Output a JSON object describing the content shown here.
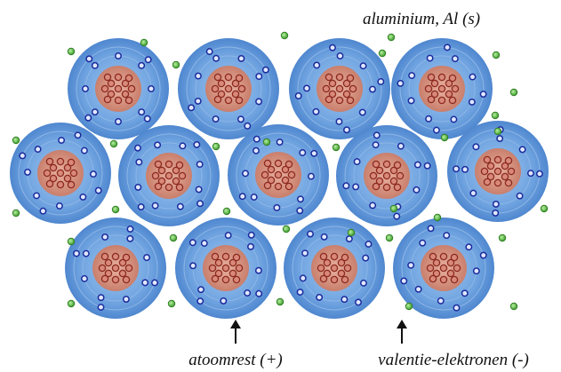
{
  "title": "aluminium, Al (s)",
  "labels": {
    "ion": "atoomrest (+)",
    "electrons": "valentie-elektronen (-)"
  }
}
